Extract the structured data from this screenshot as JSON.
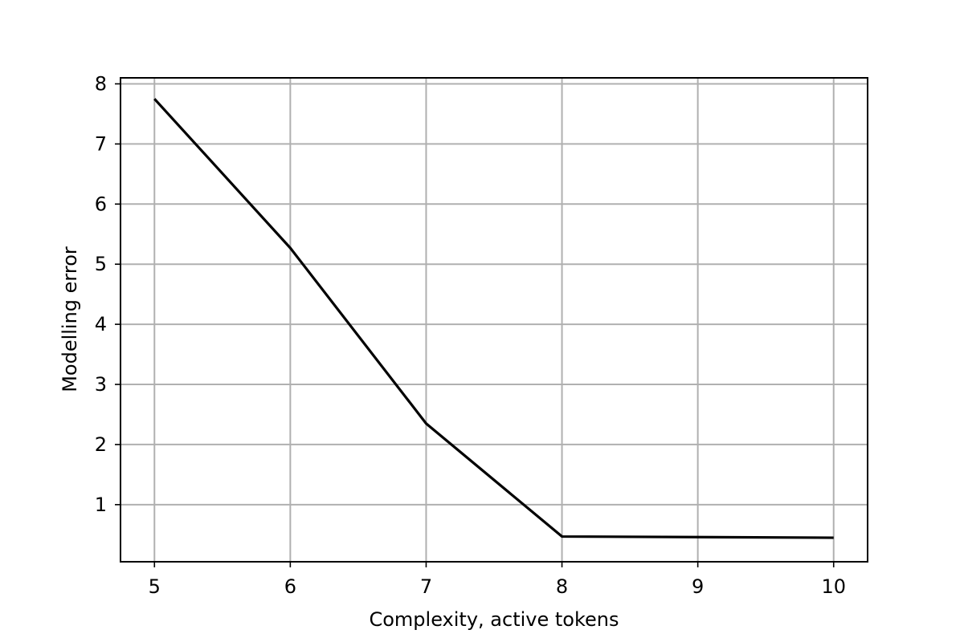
{
  "chart_data": {
    "type": "line",
    "xlabel": "Complexity, active tokens",
    "ylabel": "Modelling error",
    "xlim": [
      4.75,
      10.25
    ],
    "ylim": [
      0.05,
      8.1
    ],
    "x_ticks": [
      5,
      6,
      7,
      8,
      9,
      10
    ],
    "y_ticks": [
      1,
      2,
      3,
      4,
      5,
      6,
      7,
      8
    ],
    "grid": true,
    "series": [
      {
        "x": [
          5,
          6,
          7,
          8,
          10
        ],
        "y": [
          7.75,
          5.27,
          2.35,
          0.47,
          0.45
        ],
        "color": "#000000"
      }
    ]
  }
}
